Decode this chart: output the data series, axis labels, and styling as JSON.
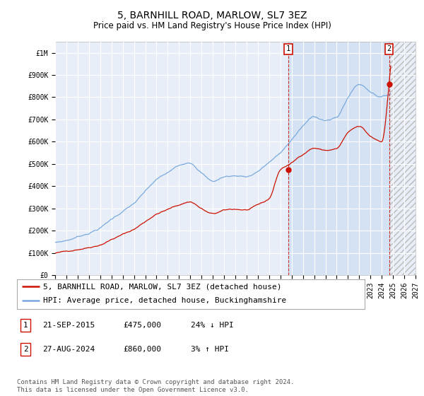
{
  "title": "5, BARNHILL ROAD, MARLOW, SL7 3EZ",
  "subtitle": "Price paid vs. HM Land Registry's House Price Index (HPI)",
  "xlim_start": 1995.0,
  "xlim_end": 2027.0,
  "ylim": [
    0,
    1050000
  ],
  "yticks": [
    0,
    100000,
    200000,
    300000,
    400000,
    500000,
    600000,
    700000,
    800000,
    900000,
    1000000
  ],
  "ytick_labels": [
    "£0",
    "£100K",
    "£200K",
    "£300K",
    "£400K",
    "£500K",
    "£600K",
    "£700K",
    "£800K",
    "£900K",
    "£1M"
  ],
  "xtick_years": [
    1995,
    1996,
    1997,
    1998,
    1999,
    2000,
    2001,
    2002,
    2003,
    2004,
    2005,
    2006,
    2007,
    2008,
    2009,
    2010,
    2011,
    2012,
    2013,
    2014,
    2015,
    2016,
    2017,
    2018,
    2019,
    2020,
    2021,
    2022,
    2023,
    2024,
    2025,
    2026,
    2027
  ],
  "hpi_color": "#7aaadd",
  "price_color": "#cc1100",
  "transaction_1_x": 2015.72,
  "transaction_1_y": 475000,
  "transaction_2_x": 2024.65,
  "transaction_2_y": 860000,
  "legend_line1": "5, BARNHILL ROAD, MARLOW, SL7 3EZ (detached house)",
  "legend_line2": "HPI: Average price, detached house, Buckinghamshire",
  "table_row1_num": "1",
  "table_row1_date": "21-SEP-2015",
  "table_row1_price": "£475,000",
  "table_row1_hpi": "24% ↓ HPI",
  "table_row2_num": "2",
  "table_row2_date": "27-AUG-2024",
  "table_row2_price": "£860,000",
  "table_row2_hpi": "3% ↑ HPI",
  "footnote": "Contains HM Land Registry data © Crown copyright and database right 2024.\nThis data is licensed under the Open Government Licence v3.0.",
  "background_color": "#e8eef8",
  "grid_color": "#ffffff",
  "shade_between_color": "#dde8f5",
  "hatch_color": "#cccccc",
  "title_fontsize": 10,
  "subtitle_fontsize": 8.5,
  "tick_fontsize": 7,
  "legend_fontsize": 8,
  "table_fontsize": 8,
  "footnote_fontsize": 6.5
}
